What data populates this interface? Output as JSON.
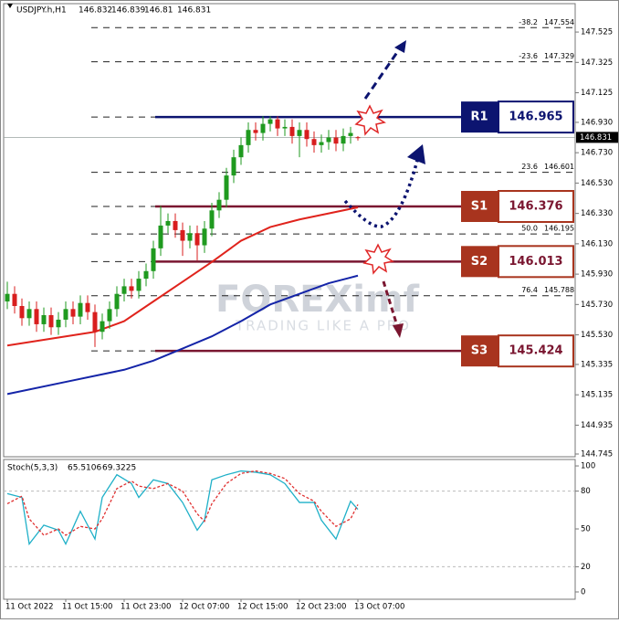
{
  "chart_data": [
    {
      "type": "candlestick",
      "title": "USDJPY.h,H1",
      "categories": [
        "11 Oct 2022",
        null,
        null,
        null,
        null,
        null,
        null,
        null,
        "11 Oct 15:00",
        null,
        null,
        null,
        null,
        null,
        null,
        null,
        "11 Oct 23:00",
        null,
        null,
        null,
        null,
        null,
        null,
        null,
        "12 Oct 07:00",
        null,
        null,
        null,
        null,
        null,
        null,
        null,
        "12 Oct 15:00",
        null,
        null,
        null,
        null,
        null,
        null,
        null,
        "12 Oct 23:00",
        null,
        null,
        null,
        null,
        null,
        null,
        null,
        "13 Oct 07:00"
      ],
      "open": [
        145.75,
        145.8,
        145.72,
        145.64,
        145.7,
        145.6,
        145.66,
        145.58,
        145.63,
        145.7,
        145.65,
        145.74,
        145.68,
        145.55,
        145.62,
        145.7,
        145.8,
        145.85,
        145.82,
        145.9,
        145.95,
        146.1,
        146.25,
        146.28,
        146.22,
        146.15,
        146.2,
        146.12,
        146.23,
        146.35,
        146.42,
        146.58,
        146.7,
        146.78,
        146.88,
        146.86,
        146.92,
        146.95,
        146.89,
        146.9,
        146.84,
        146.88,
        146.82,
        146.78,
        146.8,
        146.83,
        146.79,
        146.84,
        146.832
      ],
      "high": [
        145.88,
        145.85,
        145.77,
        145.75,
        145.75,
        145.71,
        145.71,
        145.68,
        145.75,
        145.75,
        145.79,
        145.79,
        145.73,
        145.67,
        145.75,
        145.85,
        145.9,
        145.9,
        145.95,
        146.0,
        146.15,
        146.38,
        146.33,
        146.33,
        146.27,
        146.25,
        146.25,
        146.28,
        146.4,
        146.47,
        146.63,
        146.75,
        146.83,
        146.93,
        146.93,
        146.97,
        146.97,
        146.97,
        146.95,
        146.95,
        146.93,
        146.93,
        146.87,
        146.85,
        146.88,
        146.88,
        146.89,
        146.9,
        146.839
      ],
      "low": [
        145.7,
        145.67,
        145.59,
        145.59,
        145.55,
        145.55,
        145.53,
        145.53,
        145.58,
        145.6,
        145.6,
        145.63,
        145.45,
        145.5,
        145.57,
        145.65,
        145.75,
        145.77,
        145.77,
        145.85,
        145.9,
        146.05,
        146.2,
        146.17,
        146.05,
        146.1,
        146.02,
        146.07,
        146.18,
        146.3,
        146.37,
        146.53,
        146.65,
        146.73,
        146.81,
        146.81,
        146.87,
        146.84,
        146.84,
        146.79,
        146.7,
        146.77,
        146.73,
        146.73,
        146.75,
        146.74,
        146.74,
        146.79,
        146.81
      ],
      "close": [
        145.8,
        145.72,
        145.64,
        145.7,
        145.6,
        145.66,
        145.58,
        145.63,
        145.7,
        145.65,
        145.74,
        145.68,
        145.55,
        145.62,
        145.7,
        145.8,
        145.85,
        145.82,
        145.9,
        145.95,
        146.1,
        146.25,
        146.28,
        146.22,
        146.15,
        146.2,
        146.12,
        146.23,
        146.35,
        146.42,
        146.58,
        146.7,
        146.78,
        146.88,
        146.86,
        146.92,
        146.95,
        146.89,
        146.9,
        146.84,
        146.88,
        146.82,
        146.78,
        146.8,
        146.83,
        146.79,
        146.84,
        146.86,
        146.831
      ],
      "up_color": "#1f9a1f",
      "down_color": "#d81e1e",
      "lines": [
        {
          "color": "#e0231c",
          "x": [
            0,
            8,
            12,
            16,
            20,
            24,
            28,
            32,
            36,
            40,
            44,
            48
          ],
          "values": [
            145.46,
            145.52,
            145.55,
            145.62,
            145.75,
            145.88,
            146.01,
            146.15,
            146.24,
            146.29,
            146.33,
            146.37
          ]
        },
        {
          "color": "#1424a8",
          "x": [
            0,
            8,
            16,
            20,
            24,
            28,
            32,
            36,
            40,
            44,
            48
          ],
          "values": [
            145.14,
            145.22,
            145.3,
            145.36,
            145.44,
            145.52,
            145.62,
            145.73,
            145.8,
            145.87,
            145.92
          ]
        }
      ],
      "ylim": [
        144.727,
        147.712
      ],
      "yticks": [
        147.525,
        147.325,
        147.125,
        {
          "value": 146.93,
          "label": "146.930"
        },
        {
          "value": 146.73,
          "label": "146.730"
        },
        {
          "value": 146.53,
          "label": "146.530"
        },
        {
          "value": 146.33,
          "label": "146.330"
        },
        {
          "value": 146.13,
          "label": "146.130"
        },
        {
          "value": 145.93,
          "label": "145.930"
        },
        {
          "value": 145.73,
          "label": "145.730"
        },
        {
          "value": 145.53,
          "label": "145.530"
        },
        145.335,
        145.135,
        144.935,
        144.745
      ],
      "levels": [
        {
          "name": "R1",
          "value": 146.965,
          "color": "#0c1470",
          "box_color": "#0c1470"
        },
        {
          "name": "S1",
          "value": 146.376,
          "color": "#7a1630",
          "box_color": "#a8341e"
        },
        {
          "name": "S2",
          "value": 146.013,
          "color": "#7a1630",
          "box_color": "#a8341e"
        },
        {
          "name": "S3",
          "value": 145.424,
          "color": "#7a1630",
          "box_color": "#a8341e"
        }
      ],
      "fib_levels": [
        {
          "label": "-38.2",
          "value": 147.554
        },
        {
          "label": "-23.6",
          "value": 147.329
        },
        {
          "label": "23.6",
          "value": 146.601
        },
        {
          "label": "50.0",
          "value": 146.195
        },
        {
          "label": "76.4",
          "value": 145.788
        }
      ],
      "watermark": "FOREXimf",
      "watermark_tagline": "TRADING LIKE A PRO"
    },
    {
      "type": "line",
      "title": "Stoch(5,3,3)",
      "main_value": 65.5106,
      "signal_value": 69.3225,
      "series": [
        {
          "color": "#1fb0c8",
          "dashed": false,
          "x": [
            0,
            2,
            3,
            5,
            7,
            8,
            10,
            12,
            13,
            15,
            17,
            18,
            20,
            22,
            24,
            26,
            27,
            28,
            30,
            32,
            34,
            36,
            38,
            40,
            42,
            43,
            45,
            47,
            48
          ],
          "values": [
            78,
            75,
            38,
            53,
            49,
            38,
            64,
            42,
            75,
            93,
            86,
            75,
            89,
            86,
            71,
            49,
            57,
            89,
            93,
            96,
            95,
            93,
            86,
            71,
            71,
            57,
            42,
            72,
            65.51
          ]
        },
        {
          "color": "#e03030",
          "dashed": true,
          "x": [
            0,
            2,
            3,
            5,
            7,
            8,
            10,
            12,
            13,
            15,
            17,
            18,
            20,
            22,
            24,
            26,
            27,
            28,
            30,
            32,
            34,
            36,
            38,
            40,
            42,
            43,
            45,
            47,
            48
          ],
          "values": [
            70,
            76,
            58,
            45,
            50,
            45,
            52,
            50,
            58,
            82,
            88,
            84,
            82,
            86,
            80,
            62,
            56,
            70,
            86,
            94,
            96,
            94,
            90,
            78,
            72,
            64,
            52,
            58,
            69.32
          ]
        }
      ],
      "ylim": [
        -5.8,
        105.1
      ],
      "yticks": [
        100,
        80,
        50,
        20,
        0
      ],
      "levels": [
        80,
        20
      ]
    }
  ]
}
